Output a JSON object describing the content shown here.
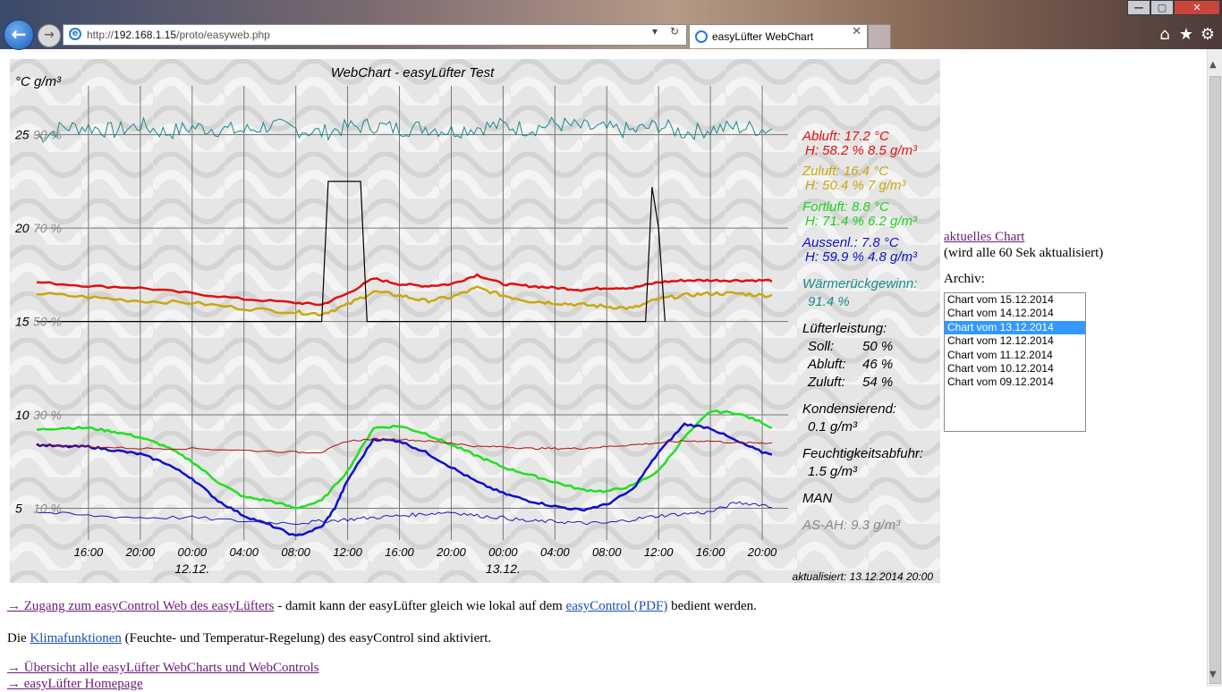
{
  "browser": {
    "url_prefix": "http://",
    "url_host": "192.168.1.15",
    "url_path": "/proto/easyweb.php",
    "tab_title": "easyLüfter WebChart",
    "tab_close": "✕",
    "back_glyph": "←",
    "fwd_glyph": "→",
    "refresh_glyph": "↻",
    "dropdown_glyph": "▾",
    "window_min": "—",
    "window_max": "▢",
    "window_close": "✕"
  },
  "chart_data": {
    "type": "line",
    "title": "WebChart  -  easyLüfter Test",
    "ylabel": "°C g/m³",
    "yticks": [
      {
        "value": 25,
        "label": "25",
        "humidity": "90 %"
      },
      {
        "value": 20,
        "label": "20",
        "humidity": "70 %"
      },
      {
        "value": 15,
        "label": "15",
        "humidity": "50 %"
      },
      {
        "value": 10,
        "label": "10",
        "humidity": "30 %"
      },
      {
        "value": 5,
        "label": "5",
        "humidity": "10 %"
      }
    ],
    "ylim": [
      3.3,
      28
    ],
    "x_hours": [
      -24,
      24
    ],
    "xticks": [
      {
        "h": -20,
        "label": "16:00"
      },
      {
        "h": -16,
        "label": "20:00"
      },
      {
        "h": -12,
        "label": "00:00"
      },
      {
        "h": -8,
        "label": "04:00"
      },
      {
        "h": -4,
        "label": "08:00"
      },
      {
        "h": 0,
        "label": "12:00"
      },
      {
        "h": 4,
        "label": "16:00"
      },
      {
        "h": 8,
        "label": "20:00"
      },
      {
        "h": 12,
        "label": "00:00"
      },
      {
        "h": 16,
        "label": "04:00"
      },
      {
        "h": 20,
        "label": "08:00"
      },
      {
        "h": 24,
        "label": "12:00"
      },
      {
        "h": 28,
        "label": "16:00"
      },
      {
        "h": 32,
        "label": "20:00"
      }
    ],
    "date_labels": [
      {
        "h": -12,
        "label": "12.12."
      },
      {
        "h": 12,
        "label": "13.12."
      }
    ],
    "x_domain": [
      -24,
      34
    ],
    "updated": "aktualisiert: 13.12.2014 20:00",
    "series": [
      {
        "key": "rh_abluft",
        "color": "#1a8a8a",
        "x": [
          -24,
          -22,
          -20,
          -18,
          -16,
          -14,
          -12,
          -10,
          -8,
          -6,
          -4,
          -2,
          0,
          2,
          4,
          6,
          8,
          10,
          12,
          14,
          16,
          18,
          20,
          22,
          24,
          26,
          28,
          30,
          32,
          34
        ],
        "y": [
          24.8,
          25.4,
          25.4,
          25.2,
          25.5,
          25.1,
          25.4,
          25.3,
          25.2,
          25.5,
          25.3,
          25.1,
          25.4,
          25.5,
          25.3,
          25.4,
          25.2,
          25.4,
          25.5,
          25.3,
          25.6,
          25.4,
          25.3,
          25.2,
          25.5,
          25.1,
          25.3,
          25.4,
          25.3,
          25.3
        ]
      },
      {
        "key": "abluft",
        "color": "#e01010",
        "x": [
          -24,
          -20,
          -16,
          -12,
          -8,
          -4,
          -2,
          0,
          2,
          4,
          6,
          8,
          10,
          12,
          14,
          16,
          18,
          20,
          22,
          24,
          26,
          28,
          30,
          32,
          34
        ],
        "y": [
          17.1,
          16.9,
          16.8,
          16.5,
          16.2,
          16.0,
          15.9,
          16.5,
          17.3,
          17.0,
          16.9,
          17.0,
          17.5,
          17.0,
          16.9,
          16.8,
          16.7,
          16.8,
          16.8,
          17.1,
          17.2,
          17.2,
          17.2,
          17.2,
          17.2
        ]
      },
      {
        "key": "zuluft",
        "color": "#c8a810",
        "x": [
          -24,
          -20,
          -16,
          -12,
          -8,
          -4,
          -2,
          0,
          2,
          4,
          6,
          8,
          10,
          12,
          14,
          16,
          18,
          20,
          22,
          24,
          26,
          28,
          30,
          32,
          34
        ],
        "y": [
          16.5,
          16.3,
          16.1,
          16.0,
          15.7,
          15.5,
          15.4,
          15.9,
          16.6,
          16.4,
          16.1,
          16.3,
          16.8,
          16.4,
          16.1,
          16.0,
          15.9,
          15.8,
          15.7,
          16.2,
          16.4,
          16.5,
          16.5,
          16.4,
          16.4
        ]
      },
      {
        "key": "fortluft",
        "color": "#20e020",
        "x": [
          -24,
          -22,
          -20,
          -18,
          -16,
          -14,
          -12,
          -10,
          -8,
          -6,
          -4,
          -2,
          0,
          2,
          4,
          6,
          8,
          10,
          12,
          14,
          16,
          18,
          20,
          22,
          24,
          26,
          28,
          30,
          32,
          34
        ],
        "y": [
          9.2,
          9.3,
          9.3,
          9.1,
          8.8,
          8.3,
          7.5,
          6.4,
          5.6,
          5.4,
          5.0,
          5.4,
          7.0,
          9.3,
          9.4,
          9.0,
          8.4,
          7.8,
          7.2,
          6.8,
          6.4,
          6.0,
          5.9,
          6.2,
          7.0,
          8.8,
          10.2,
          10.1,
          9.6,
          8.8
        ]
      },
      {
        "key": "aussenl",
        "color": "#1010c8",
        "x": [
          -24,
          -22,
          -20,
          -18,
          -16,
          -14,
          -12,
          -10,
          -8,
          -6,
          -4,
          -2,
          -1,
          0,
          2,
          4,
          6,
          8,
          10,
          12,
          14,
          16,
          18,
          20,
          22,
          24,
          26,
          28,
          30,
          32,
          34
        ],
        "y": [
          8.4,
          8.3,
          8.3,
          8.1,
          7.9,
          7.4,
          6.6,
          5.4,
          4.6,
          4.1,
          3.5,
          4.0,
          5.0,
          6.5,
          8.7,
          8.6,
          8.0,
          7.2,
          6.4,
          5.8,
          5.4,
          5.1,
          4.9,
          5.2,
          6.0,
          8.0,
          9.5,
          9.3,
          8.6,
          8.0,
          7.8
        ]
      },
      {
        "key": "ah_abluft",
        "color": "#b01010",
        "x": [
          -24,
          -20,
          -16,
          -12,
          -8,
          -4,
          -2,
          0,
          2,
          4,
          6,
          8,
          10,
          12,
          14,
          16,
          18,
          20,
          22,
          24,
          26,
          28,
          30,
          32,
          34
        ],
        "y": [
          8.4,
          8.3,
          8.2,
          8.2,
          8.1,
          8.0,
          8.0,
          8.6,
          8.7,
          8.7,
          8.6,
          8.5,
          8.3,
          8.3,
          8.2,
          8.2,
          8.2,
          8.3,
          8.4,
          8.5,
          8.6,
          8.6,
          8.5,
          8.5,
          8.5
        ]
      },
      {
        "key": "ah_aussen",
        "color": "#1a1ac0",
        "x": [
          -24,
          -20,
          -16,
          -12,
          -8,
          -4,
          -2,
          0,
          2,
          4,
          6,
          8,
          10,
          12,
          14,
          16,
          18,
          20,
          22,
          24,
          26,
          28,
          30,
          32,
          34
        ],
        "y": [
          4.8,
          4.6,
          4.5,
          4.5,
          4.3,
          4.2,
          4.3,
          4.4,
          4.5,
          4.6,
          4.7,
          4.8,
          4.6,
          4.5,
          4.3,
          4.3,
          4.2,
          4.2,
          4.4,
          4.6,
          4.7,
          4.8,
          5.3,
          5.2,
          4.8
        ]
      },
      {
        "key": "fan",
        "color": "#000000",
        "x": [
          -24,
          -2,
          -1.5,
          -1,
          0,
          1,
          1.5,
          2,
          12,
          23,
          23.5,
          24,
          24.5,
          34
        ],
        "y": [
          15,
          15,
          22.5,
          22.5,
          22.5,
          22.5,
          15,
          15,
          15,
          15,
          22.2,
          20,
          15,
          15
        ]
      }
    ],
    "legend": [
      {
        "line1": "Abluft: 17.2 °C",
        "line2": "H: 58.2 %  8.5 g/m³",
        "color": "#e01010"
      },
      {
        "line1": "Zuluft: 16.4 °C",
        "line2": "H: 50.4 %  7 g/m³",
        "color": "#c8a810"
      },
      {
        "line1": "Fortluft: 8.8 °C",
        "line2": "H: 71.4 %  6.2 g/m³",
        "color": "#20e020"
      },
      {
        "line1": "Aussenl.: 7.8  °C",
        "line2": "H: 59.9 %  4.8 g/m³",
        "color": "#1010c8"
      }
    ],
    "waermerueck_label": "Wärmerückgewinn:",
    "waermerueck_value": "91.4 %",
    "luefter_label": "Lüfterleistung:",
    "luefter_rows": [
      {
        "k": "Soll:",
        "v": "50 %"
      },
      {
        "k": "Abluft:",
        "v": "46 %"
      },
      {
        "k": "Zuluft:",
        "v": "54 %"
      }
    ],
    "kond_label": "Kondensierend:",
    "kond_value": "0.1 g/m³",
    "feucht_label": "Feuchtigkeitsabfuhr:",
    "feucht_value": "1.5 g/m³",
    "mode": "MAN",
    "asah": "AS-AH: 9.3 g/m³"
  },
  "sidebar": {
    "current_chart_link": "aktuelles Chart",
    "current_chart_note": "(wird alle 60 Sek aktualisiert)",
    "archive_label": "Archiv:",
    "archive_options": [
      "Chart vom 15.12.2014",
      "Chart vom 14.12.2014",
      "Chart vom 13.12.2014",
      "Chart vom 12.12.2014",
      "Chart vom 11.12.2014",
      "Chart vom 10.12.2014",
      "Chart vom 09.12.2014"
    ],
    "archive_selected": "Chart vom 13.12.2014"
  },
  "footer": {
    "line1_link": "→ Zugang zum easyControl Web des easyLüfters",
    "line1_text": " - damit kann der easyLüfter gleich wie lokal auf dem ",
    "line1_link2": "easyControl (PDF)",
    "line1_text2": " bedient werden.",
    "line2_text": "Die ",
    "line2_link": "Klimafunktionen",
    "line2_text2": " (Feuchte- und Temperatur-Regelung) des easyControl sind aktiviert.",
    "line3_link": "→ Übersicht alle easyLüfter WebCharts und WebControls",
    "line4_link": "→ easyLüfter Homepage"
  }
}
